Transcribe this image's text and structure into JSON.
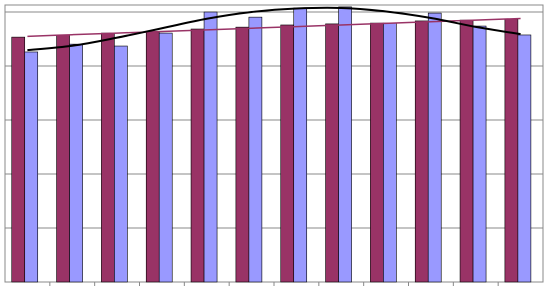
{
  "chart_data": {
    "type": "bar",
    "categories": [
      null,
      null,
      null,
      null,
      null,
      null,
      null,
      null,
      null,
      null,
      null,
      null
    ],
    "series": [
      {
        "color": "#993366",
        "values": [
          90.7,
          91.5,
          92.2,
          92.6,
          93.7,
          94.4,
          95.2,
          95.6,
          95.9,
          96.7,
          97,
          97.4
        ]
      },
      {
        "color": "#9999ff",
        "values": [
          85.2,
          88.1,
          87.4,
          92.2,
          100,
          98.1,
          101.5,
          101.9,
          95.9,
          99.6,
          94.8,
          91.5
        ]
      }
    ],
    "lines": [
      {
        "color": "#993366",
        "width": 1.5,
        "values": [
          91,
          91.6,
          92.2,
          92.8,
          93.4,
          94,
          94.6,
          95.2,
          95.8,
          96.4,
          97,
          97.6
        ]
      },
      {
        "color": "#000000",
        "width": 2,
        "values": [
          85.9,
          87.5,
          90.5,
          94,
          97.5,
          100,
          101.3,
          101.5,
          100.2,
          97.8,
          94.5,
          91.8
        ]
      }
    ],
    "ylim": [
      0,
      102.6
    ],
    "grid_lines": [
      20,
      40,
      60,
      80,
      100
    ],
    "grid": true
  }
}
